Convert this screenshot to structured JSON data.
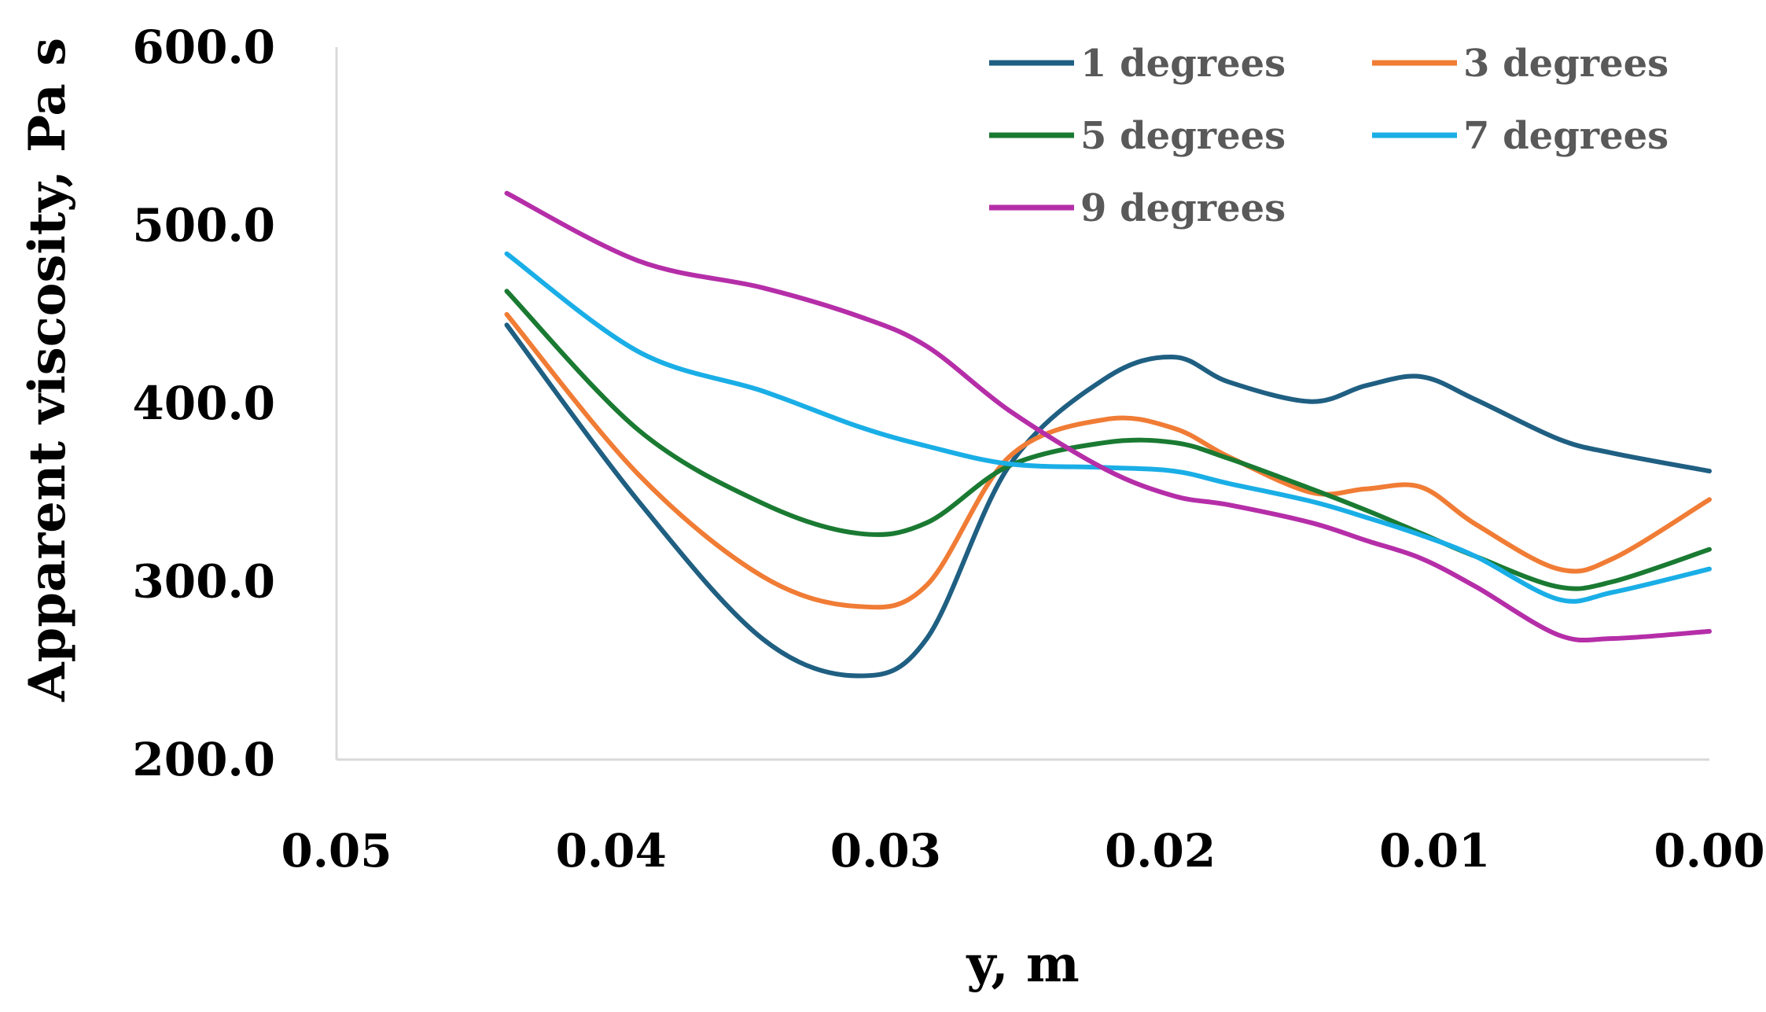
{
  "chart_data": {
    "type": "line",
    "title": "",
    "xlabel": "y, m",
    "ylabel": "Apparent viscosity, Pa s",
    "xlim": [
      0.05,
      0.0
    ],
    "x_reversed": true,
    "ylim": [
      200.0,
      600.0
    ],
    "x_ticks": [
      "0.05",
      "0.04",
      "0.03",
      "0.02",
      "0.01",
      "0.00"
    ],
    "x_tick_values": [
      0.05,
      0.04,
      0.03,
      0.02,
      0.01,
      0.0
    ],
    "y_ticks": [
      "600.0",
      "500.0",
      "400.0",
      "300.0",
      "200.0"
    ],
    "y_tick_values": [
      600,
      500,
      400,
      300,
      200
    ],
    "grid": false,
    "legend_position": "top-right",
    "x": [
      0.0438,
      0.039,
      0.0345,
      0.031,
      0.0285,
      0.0255,
      0.022,
      0.0195,
      0.0175,
      0.0145,
      0.0125,
      0.0105,
      0.0085,
      0.0055,
      0.0035,
      0.0
    ],
    "series": [
      {
        "name": "1 degrees",
        "color": "#1f5f82",
        "values": [
          444,
          345,
          268,
          247,
          268,
          365,
          414,
          426,
          412,
          401,
          410,
          415,
          402,
          380,
          372,
          362
        ]
      },
      {
        "name": "3 degrees",
        "color": "#f07c35",
        "values": [
          450,
          360,
          303,
          286,
          298,
          370,
          391,
          386,
          370,
          350,
          352,
          353,
          332,
          307,
          313,
          346
        ]
      },
      {
        "name": "5 degrees",
        "color": "#1a7a32",
        "values": [
          463,
          385,
          344,
          327,
          333,
          365,
          378,
          378,
          369,
          352,
          340,
          327,
          314,
          297,
          300,
          318
        ]
      },
      {
        "name": "7 degrees",
        "color": "#1aaee6",
        "values": [
          484,
          429,
          407,
          387,
          376,
          366,
          364,
          362,
          355,
          345,
          336,
          326,
          314,
          290,
          294,
          307
        ]
      },
      {
        "name": "9 degrees",
        "color": "#b52ea8",
        "values": [
          518,
          480,
          465,
          449,
          432,
          396,
          363,
          348,
          343,
          333,
          323,
          313,
          297,
          270,
          268,
          272
        ]
      }
    ]
  }
}
